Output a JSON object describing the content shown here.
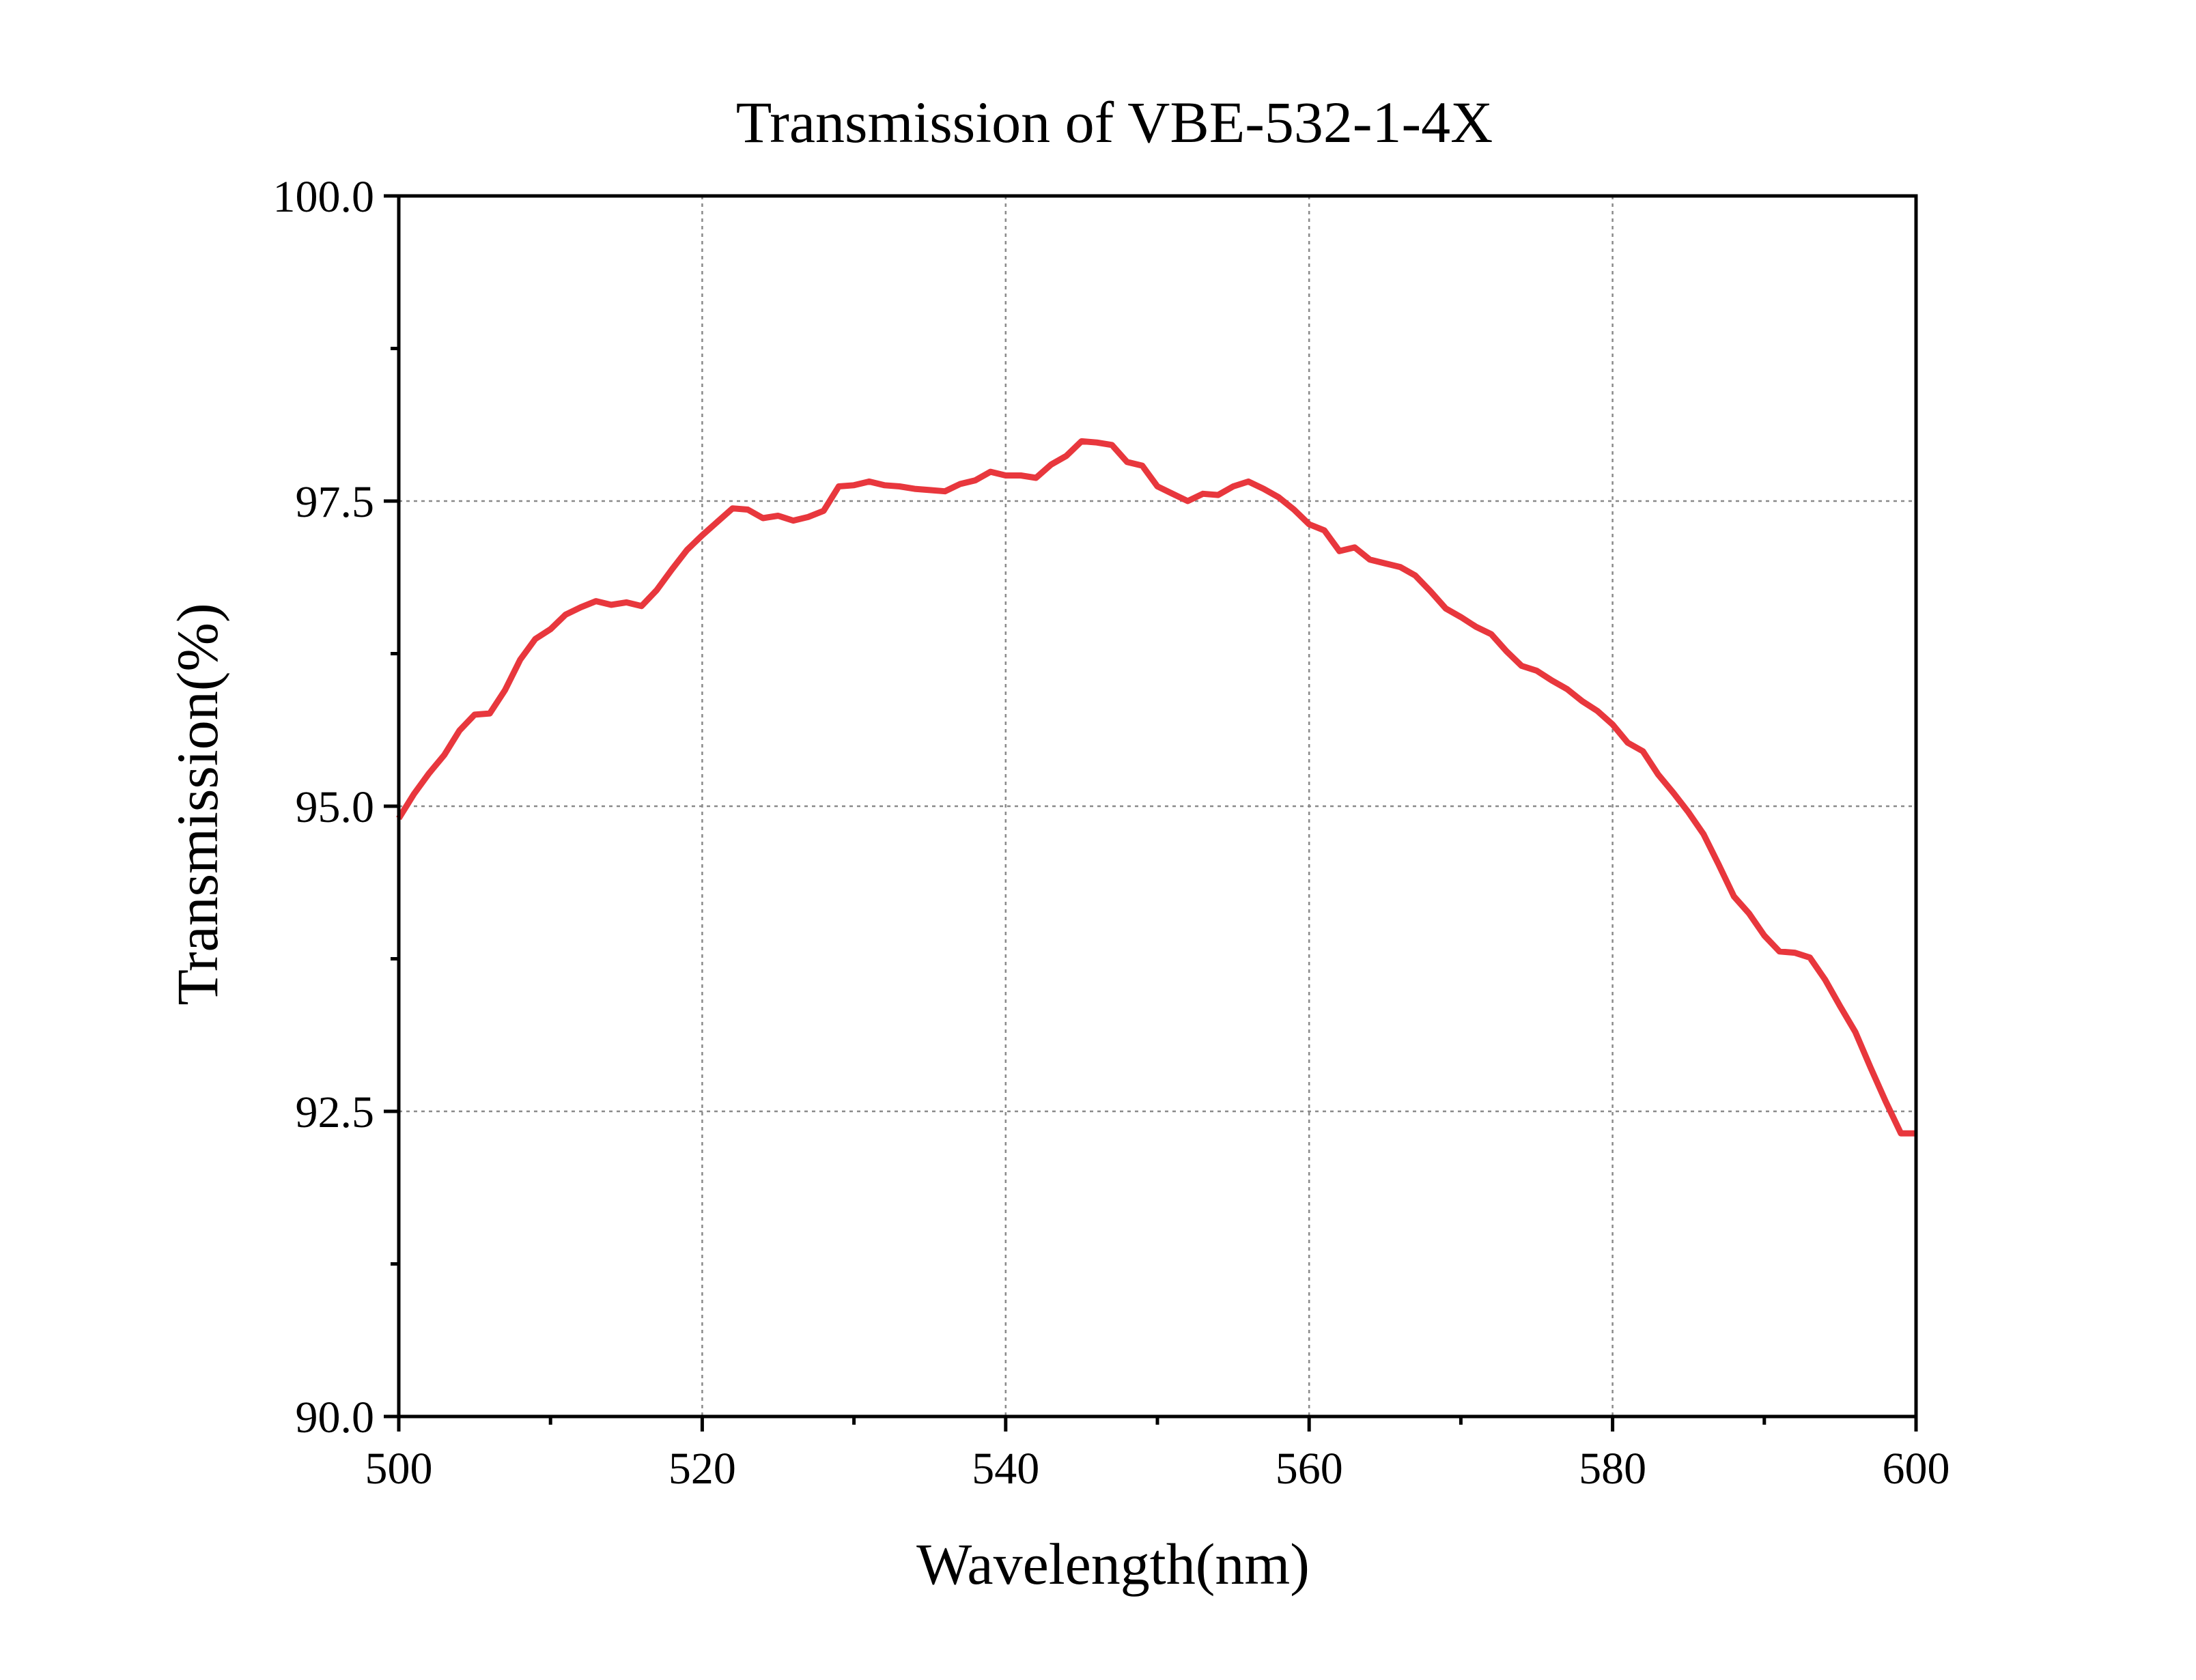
{
  "chart_data": {
    "type": "line",
    "title": "Transmission of  VBE-532-1-4X",
    "xlabel": "Wavelength(nm)",
    "ylabel": "Transmission(%)",
    "xlim": [
      500,
      600
    ],
    "ylim": [
      90.0,
      100.0
    ],
    "x_ticks": [
      "500",
      "520",
      "540",
      "560",
      "580",
      "600"
    ],
    "y_ticks": [
      "90.0",
      "92.5",
      "95.0",
      "97.5",
      "100.0"
    ],
    "grid": true,
    "legend": "none",
    "colors": {
      "line": "#e8373d",
      "axis": "#000000",
      "grid": "#8a8a8a"
    },
    "series": [
      {
        "x": [
          500,
          501,
          502,
          503,
          504,
          505,
          506,
          507,
          508,
          509,
          510,
          511,
          512,
          513,
          514,
          515,
          516,
          517,
          518,
          519,
          520,
          521,
          522,
          523,
          524,
          525,
          526,
          527,
          528,
          529,
          530,
          531,
          532,
          533,
          534,
          535,
          536,
          537,
          538,
          539,
          540,
          541,
          542,
          543,
          544,
          545,
          546,
          547,
          548,
          549,
          550,
          551,
          552,
          553,
          554,
          555,
          556,
          557,
          558,
          559,
          560,
          561,
          562,
          563,
          564,
          565,
          566,
          567,
          568,
          569,
          570,
          571,
          572,
          573,
          574,
          575,
          576,
          577,
          578,
          579,
          580,
          581,
          582,
          583,
          584,
          585,
          586,
          587,
          588,
          589,
          590,
          591,
          592,
          593,
          594,
          595,
          596,
          597,
          598,
          599,
          600
        ],
        "values": [
          94.9,
          95.1,
          95.27,
          95.42,
          95.62,
          95.75,
          95.76,
          95.95,
          96.2,
          96.37,
          96.45,
          96.57,
          96.63,
          96.68,
          96.65,
          96.67,
          96.64,
          96.77,
          96.94,
          97.1,
          97.22,
          97.33,
          97.44,
          97.43,
          97.36,
          97.38,
          97.34,
          97.37,
          97.42,
          97.62,
          97.63,
          97.66,
          97.63,
          97.62,
          97.6,
          97.59,
          97.58,
          97.64,
          97.67,
          97.74,
          97.71,
          97.71,
          97.69,
          97.8,
          97.87,
          97.99,
          97.98,
          97.96,
          97.82,
          97.79,
          97.62,
          97.56,
          97.5,
          97.56,
          97.55,
          97.62,
          97.66,
          97.6,
          97.53,
          97.43,
          97.31,
          97.26,
          97.09,
          97.12,
          97.02,
          96.99,
          96.96,
          96.89,
          96.76,
          96.62,
          96.55,
          96.47,
          96.41,
          96.27,
          96.15,
          96.11,
          96.03,
          95.96,
          95.86,
          95.78,
          95.67,
          95.52,
          95.45,
          95.26,
          95.11,
          94.95,
          94.77,
          94.52,
          94.26,
          94.12,
          93.94,
          93.81,
          93.8,
          93.76,
          93.58,
          93.36,
          93.15,
          92.86,
          92.58,
          92.32,
          92.32
        ]
      }
    ]
  }
}
